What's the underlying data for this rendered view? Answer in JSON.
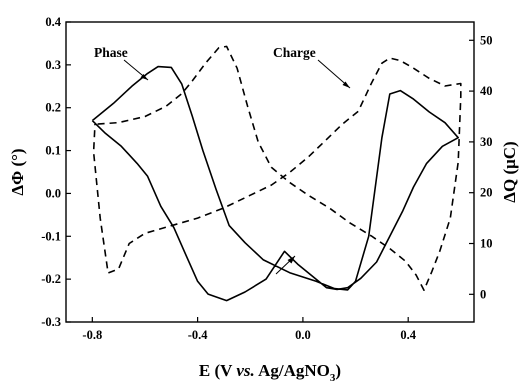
{
  "chart_data": {
    "type": "line",
    "x": {
      "label": "E (V vs. Ag/AgNO3)",
      "label_parts": [
        "E (V ",
        "vs.",
        " Ag/AgNO",
        "3",
        ")"
      ],
      "lim": [
        -0.9,
        0.65
      ],
      "ticks": [
        -0.8,
        -0.4,
        0.0,
        0.4
      ],
      "tick_labels": [
        "-0.8",
        "-0.4",
        "0.0",
        "0.4"
      ]
    },
    "y_left": {
      "label": "ΔΦ (°)",
      "lim": [
        -0.3,
        0.4
      ],
      "ticks": [
        -0.3,
        -0.2,
        -0.1,
        0.0,
        0.1,
        0.2,
        0.3,
        0.4
      ],
      "tick_labels": [
        "-0.3",
        "-0.2",
        "-0.1",
        "0.0",
        "0.1",
        "0.2",
        "0.3",
        "0.4"
      ]
    },
    "y_right": {
      "label": "ΔQ (μC)",
      "lim": [
        -5.45,
        53.6
      ],
      "ticks": [
        0,
        10,
        20,
        30,
        40,
        50
      ],
      "tick_labels": [
        "0",
        "10",
        "20",
        "30",
        "40",
        "50"
      ]
    },
    "grid": false,
    "annotations": [
      {
        "text": "Phase",
        "points_to_series": "phase"
      },
      {
        "text": "Charge",
        "points_to_series": "charge"
      }
    ],
    "series": [
      {
        "name": "Phase",
        "axis": "left",
        "style": "solid",
        "points": [
          [
            -0.8,
            0.17
          ],
          [
            -0.72,
            0.21
          ],
          [
            -0.65,
            0.25
          ],
          [
            -0.59,
            0.28
          ],
          [
            -0.55,
            0.296
          ],
          [
            -0.5,
            0.294
          ],
          [
            -0.46,
            0.255
          ],
          [
            -0.42,
            0.18
          ],
          [
            -0.38,
            0.1
          ],
          [
            -0.33,
            0.01
          ],
          [
            -0.28,
            -0.075
          ],
          [
            -0.22,
            -0.115
          ],
          [
            -0.15,
            -0.155
          ],
          [
            -0.05,
            -0.185
          ],
          [
            0.05,
            -0.205
          ],
          [
            0.12,
            -0.222
          ],
          [
            0.17,
            -0.225
          ],
          [
            0.2,
            -0.205
          ],
          [
            0.25,
            -0.1
          ],
          [
            0.3,
            0.13
          ],
          [
            0.33,
            0.232
          ],
          [
            0.37,
            0.24
          ],
          [
            0.42,
            0.22
          ],
          [
            0.48,
            0.19
          ],
          [
            0.54,
            0.165
          ],
          [
            0.59,
            0.13
          ],
          [
            0.53,
            0.11
          ],
          [
            0.47,
            0.07
          ],
          [
            0.42,
            0.015
          ],
          [
            0.38,
            -0.04
          ],
          [
            0.33,
            -0.1
          ],
          [
            0.28,
            -0.16
          ],
          [
            0.22,
            -0.198
          ],
          [
            0.17,
            -0.22
          ],
          [
            0.13,
            -0.224
          ],
          [
            0.09,
            -0.22
          ],
          [
            0.04,
            -0.195
          ],
          [
            -0.02,
            -0.165
          ],
          [
            -0.07,
            -0.135
          ],
          [
            -0.14,
            -0.2
          ],
          [
            -0.22,
            -0.23
          ],
          [
            -0.29,
            -0.25
          ],
          [
            -0.36,
            -0.235
          ],
          [
            -0.4,
            -0.205
          ],
          [
            -0.44,
            -0.15
          ],
          [
            -0.49,
            -0.08
          ],
          [
            -0.54,
            -0.03
          ],
          [
            -0.59,
            0.04
          ],
          [
            -0.63,
            0.07
          ],
          [
            -0.69,
            0.11
          ],
          [
            -0.75,
            0.14
          ],
          [
            -0.8,
            0.17
          ]
        ]
      },
      {
        "name": "Charge",
        "axis": "right",
        "style": "dashed",
        "points": [
          [
            -0.78,
            33.5
          ],
          [
            -0.7,
            33.8
          ],
          [
            -0.6,
            35
          ],
          [
            -0.52,
            37
          ],
          [
            -0.46,
            39.5
          ],
          [
            -0.42,
            42
          ],
          [
            -0.37,
            45.5
          ],
          [
            -0.32,
            48.5
          ],
          [
            -0.29,
            48.8
          ],
          [
            -0.25,
            44.5
          ],
          [
            -0.21,
            37
          ],
          [
            -0.17,
            30
          ],
          [
            -0.12,
            25
          ],
          [
            -0.05,
            22
          ],
          [
            0.02,
            19.5
          ],
          [
            0.1,
            17
          ],
          [
            0.18,
            14
          ],
          [
            0.26,
            11.5
          ],
          [
            0.33,
            9
          ],
          [
            0.39,
            6.5
          ],
          [
            0.43,
            3.8
          ],
          [
            0.46,
            0.8
          ],
          [
            0.49,
            4.5
          ],
          [
            0.52,
            8.5
          ],
          [
            0.56,
            15
          ],
          [
            0.59,
            26
          ],
          [
            0.6,
            39
          ],
          [
            0.6,
            41.5
          ],
          [
            0.54,
            41
          ],
          [
            0.48,
            42.5
          ],
          [
            0.42,
            44.5
          ],
          [
            0.37,
            46
          ],
          [
            0.33,
            46.5
          ],
          [
            0.3,
            45.5
          ],
          [
            0.26,
            41.5
          ],
          [
            0.21,
            36
          ],
          [
            0.15,
            33.5
          ],
          [
            0.08,
            30
          ],
          [
            0.02,
            27
          ],
          [
            -0.05,
            24
          ],
          [
            -0.12,
            21.5
          ],
          [
            -0.2,
            19.5
          ],
          [
            -0.3,
            17
          ],
          [
            -0.4,
            15
          ],
          [
            -0.5,
            13.5
          ],
          [
            -0.6,
            12
          ],
          [
            -0.66,
            10
          ],
          [
            -0.7,
            5
          ],
          [
            -0.74,
            4.2
          ],
          [
            -0.77,
            15
          ],
          [
            -0.795,
            28
          ],
          [
            -0.79,
            33.5
          ]
        ]
      }
    ]
  }
}
